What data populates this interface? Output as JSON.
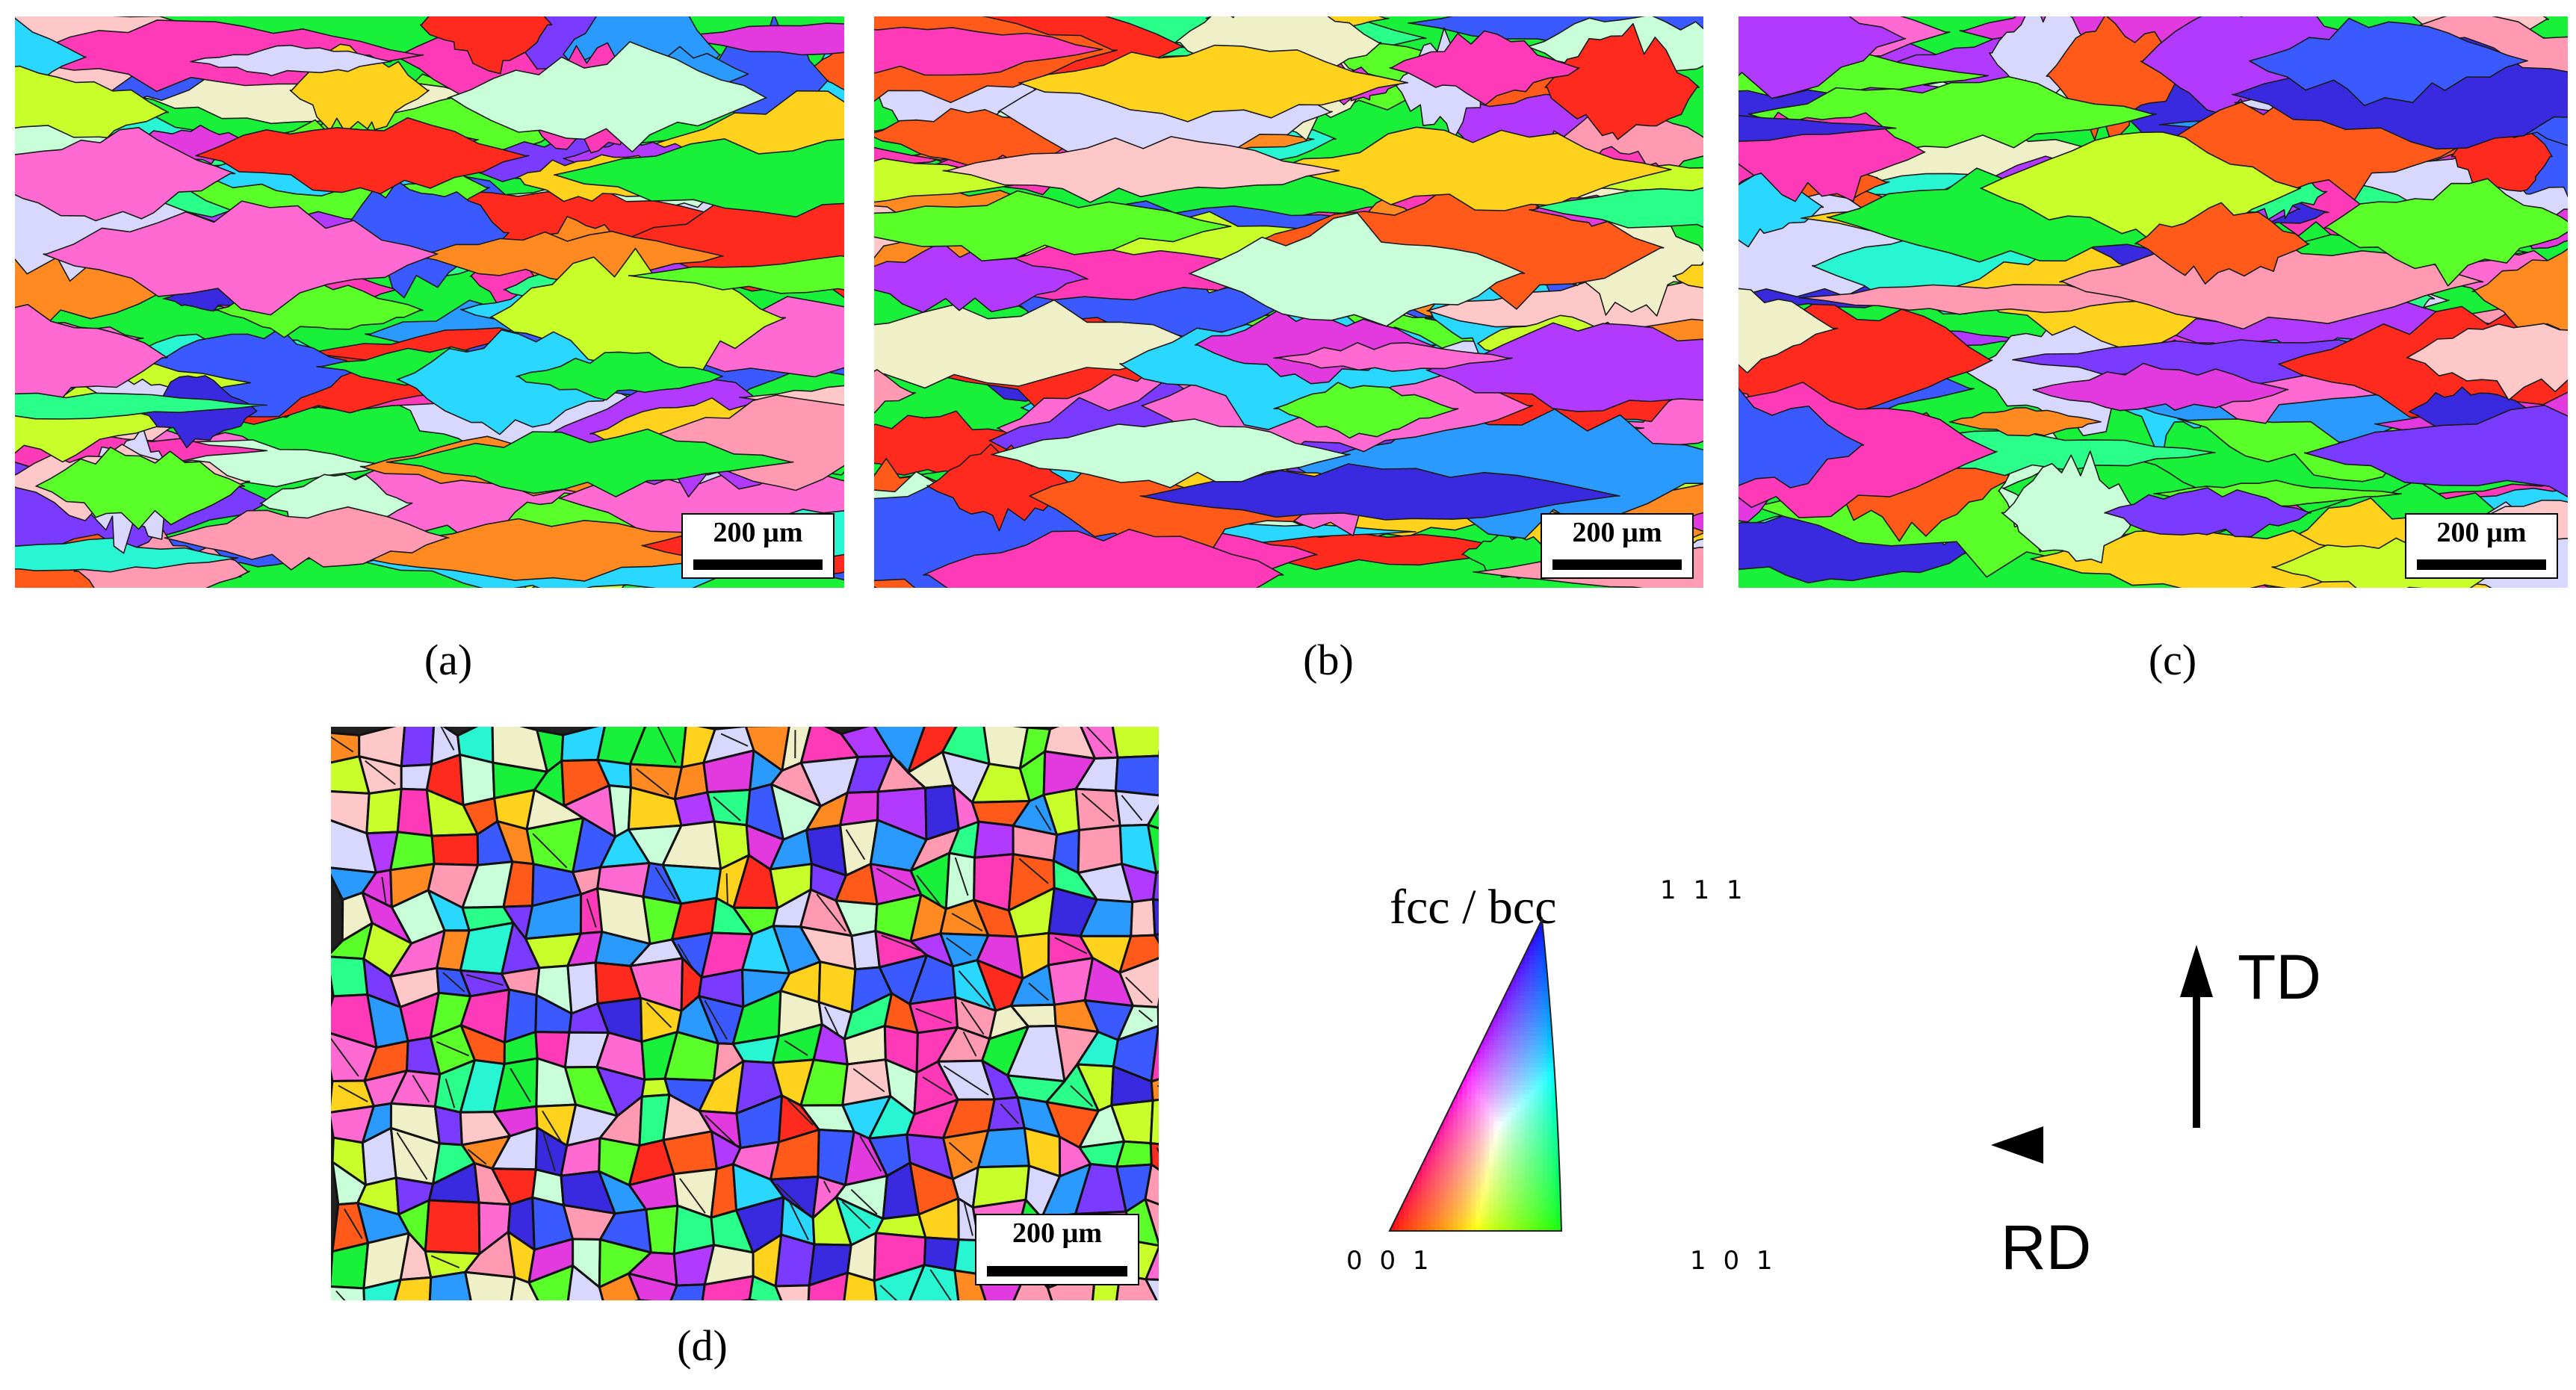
{
  "panels": {
    "a": {
      "label": "(a)",
      "scale": "200 µm"
    },
    "b": {
      "label": "(b)",
      "scale": "200 µm"
    },
    "c": {
      "label": "(c)",
      "scale": "200 µm"
    },
    "d": {
      "label": "(d)",
      "scale": "200 µm"
    }
  },
  "ipf_legend": {
    "title": "fcc / bcc",
    "corners": {
      "top": "1 1 1",
      "left": "0 0 1",
      "right": "1 0 1"
    },
    "colors": {
      "001": "#ff0000",
      "101": "#00ff00",
      "111": "#0000ff"
    }
  },
  "axes": {
    "vertical": "TD",
    "horizontal": "RD"
  },
  "palette": [
    "#ff2a1e",
    "#ff5a1a",
    "#ff8a22",
    "#ffd21e",
    "#c8ff2a",
    "#5aff2a",
    "#18f03a",
    "#2aff8a",
    "#28f5d2",
    "#2ad8ff",
    "#2a9aff",
    "#3a5aff",
    "#3a2adf",
    "#7a3aff",
    "#b23aff",
    "#e23adf",
    "#ff3ab8",
    "#ff6ad2",
    "#ff9ab2",
    "#ffc8c8",
    "#d8d8ff",
    "#c8ffd8",
    "#f0f0c8"
  ]
}
